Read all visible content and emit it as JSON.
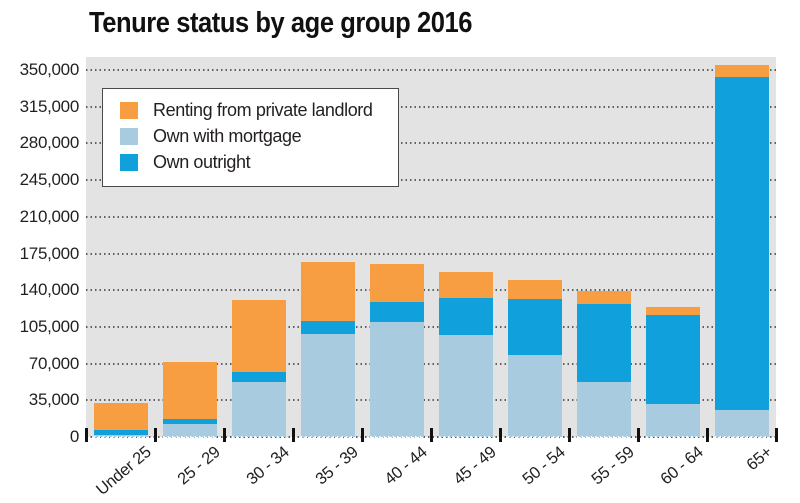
{
  "title": "Tenure status by age group 2016",
  "colors": {
    "renting": "#F79E42",
    "mortgage": "#A9CBE0",
    "outright": "#10A0DB",
    "plot_background": "#E3E3E3",
    "grid_dots": "#5F5F5F",
    "text": "#231F20",
    "tick": "#111111",
    "legend_border": "#4A4A4A"
  },
  "legend": {
    "items": [
      {
        "label": "Renting from private landlord",
        "color_key": "renting"
      },
      {
        "label": "Own with mortgage",
        "color_key": "mortgage"
      },
      {
        "label": "Own outright",
        "color_key": "outright"
      }
    ]
  },
  "chart_data": {
    "type": "bar",
    "stacked": true,
    "title": "Tenure status by age group 2016",
    "categories": [
      "Under 25",
      "25 - 29",
      "30 - 34",
      "35 - 39",
      "40 - 44",
      "45 - 49",
      "50 - 54",
      "55 - 59",
      "60 - 64",
      "65+"
    ],
    "series": [
      {
        "name": "Renting from private landlord",
        "color_key": "renting",
        "values": [
          26000,
          54000,
          69000,
          56000,
          36000,
          25000,
          18000,
          12000,
          8000,
          11000
        ]
      },
      {
        "name": "Own with mortgage",
        "color_key": "mortgage",
        "values": [
          2000,
          12000,
          52000,
          98000,
          110000,
          97000,
          78000,
          52000,
          31000,
          26000
        ]
      },
      {
        "name": "Own outright",
        "color_key": "outright",
        "values": [
          5000,
          5000,
          10000,
          12000,
          19000,
          35000,
          53000,
          74000,
          85000,
          318000
        ]
      }
    ],
    "stack_order_bottom_to_top": [
      "Own with mortgage",
      "Own outright",
      "Renting from private landlord"
    ],
    "ylim": [
      0,
      350000
    ],
    "ytick_step": 35000,
    "ytick_labels": [
      "0",
      "35,000",
      "70,000",
      "105,000",
      "140,000",
      "175,000",
      "210,000",
      "245,000",
      "280,000",
      "315,000",
      "350,000"
    ],
    "grid": true,
    "legend_position": "top-left"
  }
}
